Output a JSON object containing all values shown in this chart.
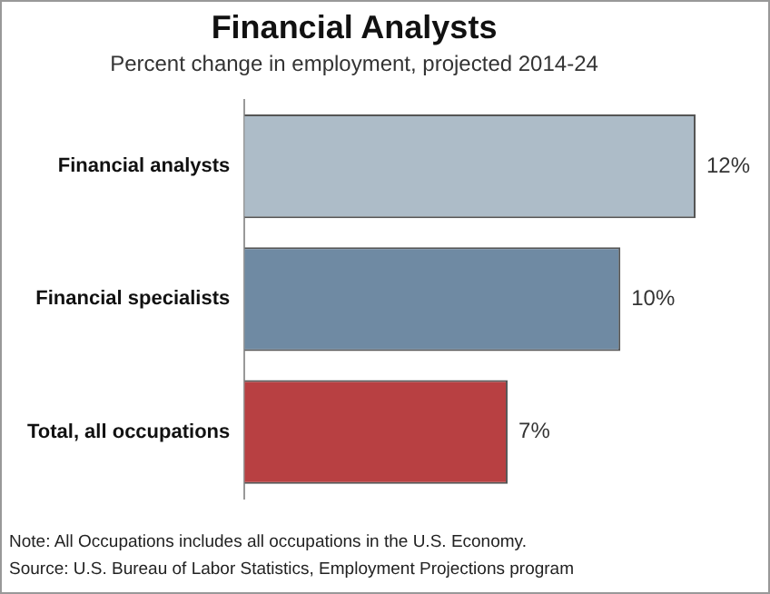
{
  "chart_data": {
    "type": "bar",
    "orientation": "horizontal",
    "title": "Financial Analysts",
    "subtitle": "Percent change in employment, projected 2014-24",
    "categories": [
      "Financial analysts",
      "Financial specialists",
      "Total, all occupations"
    ],
    "values": [
      12,
      10,
      7
    ],
    "colors": [
      "#adbcc8",
      "#6f8aa3",
      "#b84042"
    ],
    "value_labels": [
      "12%",
      "10%",
      "7%"
    ],
    "tick_labels": "y",
    "grid": false,
    "legend": false,
    "annotations": [
      "Note: All Occupations includes all occupations in the U.S. Economy.",
      "Source: U.S. Bureau of Labor Statistics, Employment Projections program"
    ]
  }
}
